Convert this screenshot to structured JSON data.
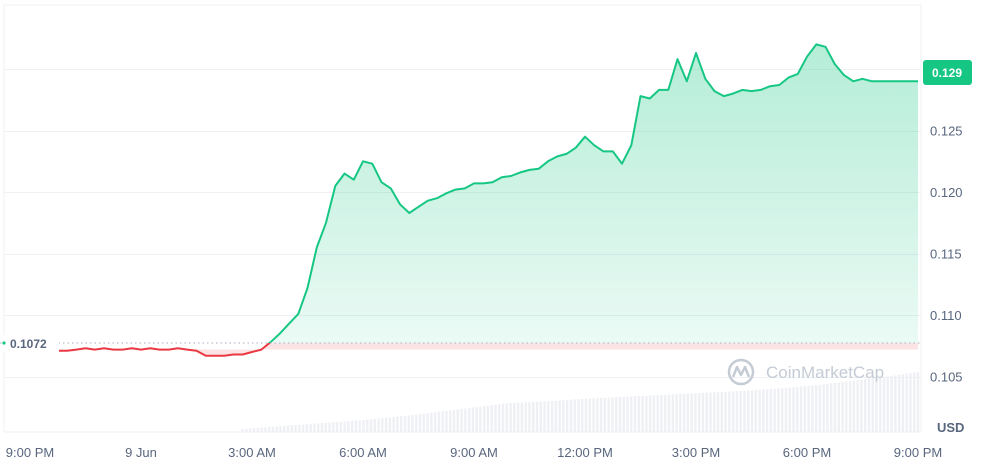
{
  "chart_data": {
    "type": "line",
    "title": "",
    "xlabel": "",
    "ylabel": "",
    "unit_label": "USD",
    "watermark": "CoinMarketCap",
    "x_ticks": [
      "9:00 PM",
      "9 Jun",
      "3:00 AM",
      "6:00 AM",
      "9:00 AM",
      "12:00 PM",
      "3:00 PM",
      "6:00 PM",
      "9:00 PM"
    ],
    "y_ticks": [
      "0.105",
      "0.110",
      "0.115",
      "0.120",
      "0.125"
    ],
    "ylim": [
      0.1005,
      0.1352
    ],
    "reference_price": 0.1072,
    "reference_label": "0.1072",
    "current_price": 0.129,
    "current_label": "0.129",
    "colors": {
      "up": "#16c784",
      "down": "#ea3943",
      "grid": "#eff2f5",
      "volume": "#eef0f4",
      "text": "#58667e"
    },
    "series": [
      {
        "hours": [
          0.5,
          1,
          1.5,
          2,
          2.5,
          3,
          3.5,
          4,
          4.5,
          5,
          5.5,
          6,
          6.5,
          7,
          7.5,
          8,
          8.5,
          9,
          9.5,
          10,
          10.5,
          11,
          11.5,
          12,
          12.5,
          13,
          13.5,
          14,
          14.5,
          15,
          15.5,
          16,
          16.5,
          17,
          17.5,
          18,
          18.5,
          19,
          19.5,
          20,
          20.5,
          21,
          21.5,
          22,
          22.5,
          23,
          23.5,
          24,
          24.5,
          25,
          25.5,
          26,
          26.5,
          27,
          27.5,
          28,
          28.5,
          29,
          29.5,
          30,
          30.5,
          31,
          31.5,
          32,
          32.5,
          33,
          33.5,
          34,
          34.5,
          35,
          35.5,
          36,
          36.5,
          37,
          37.5,
          38,
          38.5,
          39,
          39.5,
          40,
          40.5,
          41,
          41.5,
          42,
          42.5,
          43,
          43.5,
          44,
          44.5,
          45,
          45.5,
          46,
          46.5,
          47,
          47.5,
          48
        ],
        "values": [
          0.1073,
          0.1072,
          0.1071,
          0.1071,
          0.1072,
          0.1073,
          0.1072,
          0.1073,
          0.1072,
          0.1072,
          0.1073,
          0.1072,
          0.1073,
          0.1072,
          0.1072,
          0.1073,
          0.1072,
          0.1071,
          0.1067,
          0.1067,
          0.1067,
          0.1068,
          0.1068,
          0.107,
          0.1072,
          0.1078,
          0.1085,
          0.1093,
          0.1101,
          0.1122,
          0.1155,
          0.1175,
          0.1205,
          0.1215,
          0.121,
          0.1225,
          0.1223,
          0.1208,
          0.1203,
          0.119,
          0.1183,
          0.1188,
          0.1193,
          0.1195,
          0.1199,
          0.1202,
          0.1203,
          0.1207,
          0.1207,
          0.1208,
          0.1212,
          0.1213,
          0.1216,
          0.1218,
          0.1219,
          0.1225,
          0.1229,
          0.1231,
          0.1236,
          0.1245,
          0.1238,
          0.1233,
          0.1233,
          0.1223,
          0.1238,
          0.1278,
          0.1276,
          0.1283,
          0.1283,
          0.1308,
          0.129,
          0.1313,
          0.1292,
          0.1282,
          0.1278,
          0.128,
          0.1283,
          0.1282,
          0.1283,
          0.1286,
          0.1287,
          0.1293,
          0.1296,
          0.131,
          0.132,
          0.1318,
          0.1304,
          0.1295,
          0.129,
          0.1292,
          0.129,
          0.129,
          0.129,
          0.129,
          0.129,
          0.129
        ]
      }
    ],
    "volume_levels": [
      0.05,
      0.08,
      0.11,
      0.14,
      0.17,
      0.2,
      0.24,
      0.28,
      0.33,
      0.38,
      0.43,
      0.48,
      0.5,
      0.52,
      0.55,
      0.57,
      0.59,
      0.61,
      0.63,
      0.65,
      0.67,
      0.69,
      0.72,
      0.75,
      0.79,
      0.84,
      0.89,
      0.94,
      1.0
    ]
  }
}
